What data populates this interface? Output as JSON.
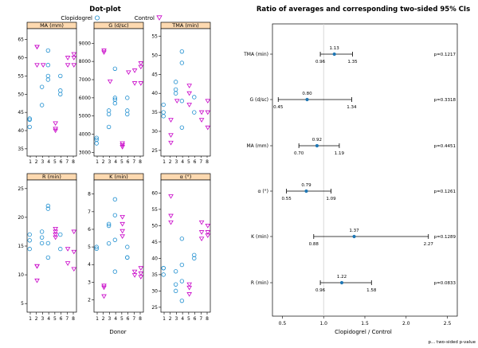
{
  "dotplot": {
    "title": "Dot-plot",
    "xlabel": "Donor",
    "legend": [
      "Clopidogrel",
      "Control"
    ],
    "x_ticks": [
      "1",
      "2",
      "3",
      "4",
      "5",
      "6",
      "7",
      "8"
    ],
    "colors": {
      "clopidogrel": "#1f8fd0",
      "control": "#c800c8"
    }
  },
  "chart_data": [
    {
      "type": "scatter",
      "panel": "MA (mm)",
      "ylim": [
        33,
        68
      ],
      "yticks": [
        35,
        40,
        45,
        50,
        55,
        60,
        65
      ],
      "series": [
        {
          "name": "Clopidogrel",
          "points": [
            [
              1,
              43
            ],
            [
              1,
              41
            ],
            [
              1,
              43.3
            ],
            [
              3,
              47
            ],
            [
              3,
              52
            ],
            [
              4,
              54
            ],
            [
              4,
              58
            ],
            [
              4,
              55
            ],
            [
              4,
              62
            ],
            [
              6,
              51
            ],
            [
              6,
              50
            ],
            [
              6,
              55
            ]
          ]
        },
        {
          "name": "Control",
          "points": [
            [
              2,
              63
            ],
            [
              2,
              63
            ],
            [
              2,
              58
            ],
            [
              3,
              58
            ],
            [
              5,
              42
            ],
            [
              5,
              40.5
            ],
            [
              5,
              40
            ],
            [
              7,
              60
            ],
            [
              7,
              58
            ],
            [
              8,
              61
            ],
            [
              8,
              60
            ],
            [
              8,
              58
            ]
          ]
        }
      ]
    },
    {
      "type": "scatter",
      "panel": "G (d/sc)",
      "ylim": [
        2800,
        9800
      ],
      "yticks": [
        3000,
        4000,
        5000,
        6000,
        7000,
        8000,
        9000
      ],
      "series": [
        {
          "name": "Clopidogrel",
          "points": [
            [
              1,
              3500
            ],
            [
              1,
              3800
            ],
            [
              1,
              3700
            ],
            [
              3,
              5300
            ],
            [
              3,
              4400
            ],
            [
              3,
              5100
            ],
            [
              4,
              6000
            ],
            [
              4,
              5900
            ],
            [
              4,
              7600
            ],
            [
              4,
              5700
            ],
            [
              6,
              6000
            ],
            [
              6,
              5300
            ],
            [
              6,
              5100
            ]
          ]
        },
        {
          "name": "Control",
          "points": [
            [
              2,
              8600
            ],
            [
              2,
              8500
            ],
            [
              3,
              6900
            ],
            [
              5,
              3500
            ],
            [
              5,
              3400
            ],
            [
              5,
              3300
            ],
            [
              6,
              7400
            ],
            [
              7,
              6800
            ],
            [
              7,
              7500
            ],
            [
              8,
              7900
            ],
            [
              8,
              7700
            ],
            [
              8,
              6800
            ]
          ]
        }
      ]
    },
    {
      "type": "scatter",
      "panel": "TMA (min)",
      "ylim": [
        23.5,
        57
      ],
      "yticks": [
        25,
        30,
        35,
        40,
        45,
        50,
        55
      ],
      "series": [
        {
          "name": "Clopidogrel",
          "points": [
            [
              1,
              37
            ],
            [
              1,
              35
            ],
            [
              1,
              34
            ],
            [
              3,
              41
            ],
            [
              3,
              43
            ],
            [
              3,
              40
            ],
            [
              4,
              51
            ],
            [
              4,
              48
            ],
            [
              4,
              38
            ],
            [
              4,
              31
            ],
            [
              6,
              35
            ],
            [
              6,
              39
            ]
          ]
        },
        {
          "name": "Control",
          "points": [
            [
              2,
              33
            ],
            [
              2,
              29
            ],
            [
              2,
              27
            ],
            [
              3,
              38
            ],
            [
              5,
              42
            ],
            [
              5,
              40
            ],
            [
              5,
              37
            ],
            [
              7,
              33
            ],
            [
              7,
              35
            ],
            [
              8,
              38
            ],
            [
              8,
              35
            ],
            [
              8,
              31
            ]
          ]
        }
      ]
    },
    {
      "type": "scatter",
      "panel": "R (min)",
      "ylim": [
        3.5,
        26.5
      ],
      "yticks": [
        5,
        10,
        15,
        20,
        25
      ],
      "series": [
        {
          "name": "Clopidogrel",
          "points": [
            [
              1,
              17
            ],
            [
              1,
              16
            ],
            [
              1,
              14.5
            ],
            [
              3,
              17.5
            ],
            [
              3,
              16.5
            ],
            [
              3,
              15.5
            ],
            [
              4,
              22
            ],
            [
              4,
              21.5
            ],
            [
              4,
              13
            ],
            [
              4,
              15.5
            ],
            [
              6,
              17
            ],
            [
              6,
              14.5
            ]
          ]
        },
        {
          "name": "Control",
          "points": [
            [
              2,
              11.5
            ],
            [
              2,
              9
            ],
            [
              2,
              11.5
            ],
            [
              5,
              18
            ],
            [
              5,
              17
            ],
            [
              5,
              16.5
            ],
            [
              5,
              17.5
            ],
            [
              7,
              14.5
            ],
            [
              7,
              12
            ],
            [
              8,
              17.5
            ],
            [
              8,
              14
            ],
            [
              8,
              11
            ]
          ]
        }
      ]
    },
    {
      "type": "scatter",
      "panel": "K (min)",
      "ylim": [
        1.3,
        8.8
      ],
      "yticks": [
        2,
        3,
        4,
        5,
        6,
        7,
        8
      ],
      "series": [
        {
          "name": "Clopidogrel",
          "points": [
            [
              1,
              4.9
            ],
            [
              1,
              5
            ],
            [
              3,
              6.2
            ],
            [
              3,
              5.2
            ],
            [
              3,
              6.3
            ],
            [
              4,
              7.7
            ],
            [
              4,
              5.4
            ],
            [
              4,
              6.8
            ],
            [
              4,
              3.6
            ],
            [
              6,
              5
            ],
            [
              6,
              4.4
            ],
            [
              6,
              4.4
            ]
          ]
        },
        {
          "name": "Control",
          "points": [
            [
              2,
              2.8
            ],
            [
              2,
              2.7
            ],
            [
              2,
              2.2
            ],
            [
              5,
              6.7
            ],
            [
              5,
              6.3
            ],
            [
              5,
              5.6
            ],
            [
              5,
              5.9
            ],
            [
              7,
              3.6
            ],
            [
              7,
              3.4
            ],
            [
              8,
              3.8
            ],
            [
              8,
              3.3
            ],
            [
              8,
              3.5
            ]
          ]
        }
      ]
    },
    {
      "type": "scatter",
      "panel": "α (°)",
      "ylim": [
        23.5,
        64
      ],
      "yticks": [
        25,
        30,
        35,
        40,
        45,
        50,
        55,
        60
      ],
      "series": [
        {
          "name": "Clopidogrel",
          "points": [
            [
              1,
              37
            ],
            [
              1,
              35
            ],
            [
              1,
              37
            ],
            [
              3,
              36
            ],
            [
              3,
              32
            ],
            [
              3,
              30
            ],
            [
              4,
              46
            ],
            [
              4,
              38
            ],
            [
              4,
              33
            ],
            [
              4,
              27
            ],
            [
              6,
              40
            ],
            [
              6,
              41
            ]
          ]
        },
        {
          "name": "Control",
          "points": [
            [
              2,
              59
            ],
            [
              2,
              53
            ],
            [
              2,
              51
            ],
            [
              5,
              31
            ],
            [
              5,
              29
            ],
            [
              5,
              32
            ],
            [
              7,
              46
            ],
            [
              7,
              48
            ],
            [
              7,
              51
            ],
            [
              8,
              50
            ],
            [
              8,
              48
            ],
            [
              8,
              47
            ]
          ]
        }
      ]
    },
    {
      "type": "scatter",
      "panel": "ratio_ci",
      "title": "Ratio of averages and corresponding two-sided 95% CIs",
      "xlabel": "Clopidogrel / Control",
      "xlim": [
        0.38,
        2.62
      ],
      "xticks": [
        0.5,
        1.0,
        1.5,
        2.0,
        2.5
      ],
      "x_tick_labels": [
        "0.5",
        "1.0",
        "1.5",
        "2.0",
        "2.5"
      ],
      "reference_line": 1.0,
      "footnote": "p... two-sided p-value",
      "rows": [
        {
          "label": "TMA (min)",
          "est": 1.13,
          "lo": 0.96,
          "hi": 1.35,
          "est_label": "1.13",
          "lo_label": "0.96",
          "hi_label": "1.35",
          "p": "p=0.1217"
        },
        {
          "label": "G (d/sc)",
          "est": 0.8,
          "lo": 0.45,
          "hi": 1.34,
          "est_label": "0.80",
          "lo_label": "0.45",
          "hi_label": "1.34",
          "p": "p=0.3318"
        },
        {
          "label": "MA (mm)",
          "est": 0.92,
          "lo": 0.7,
          "hi": 1.19,
          "est_label": "0.92",
          "lo_label": "0.70",
          "hi_label": "1.19",
          "p": "p=0.4451"
        },
        {
          "label": "α (°)",
          "est": 0.79,
          "lo": 0.55,
          "hi": 1.09,
          "est_label": "0.79",
          "lo_label": "0.55",
          "hi_label": "1.09",
          "p": "p=0.1261"
        },
        {
          "label": "K (min)",
          "est": 1.37,
          "lo": 0.88,
          "hi": 2.27,
          "est_label": "1.37",
          "lo_label": "0.88",
          "hi_label": "2.27",
          "p": "p=0.1289"
        },
        {
          "label": "R (min)",
          "est": 1.22,
          "lo": 0.96,
          "hi": 1.58,
          "est_label": "1.22",
          "lo_label": "0.96",
          "hi_label": "1.58",
          "p": "p=0.0833"
        }
      ]
    }
  ]
}
